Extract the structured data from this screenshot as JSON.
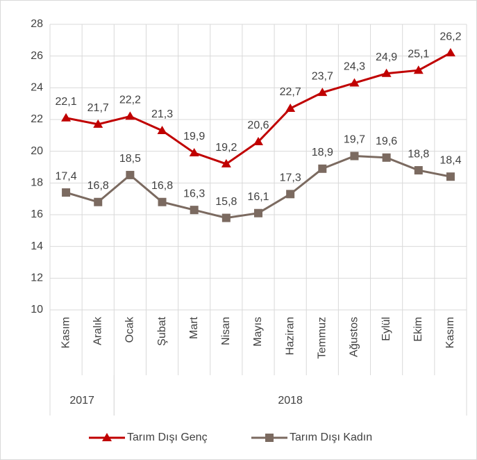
{
  "chart_data": {
    "type": "line",
    "categories": [
      "Kasım",
      "Aralık",
      "Ocak",
      "Şubat",
      "Mart",
      "Nisan",
      "Mayıs",
      "Haziran",
      "Temmuz",
      "Ağustos",
      "Eylül",
      "Ekim",
      "Kasım"
    ],
    "groups": [
      {
        "label": "2017",
        "span": 2
      },
      {
        "label": "2018",
        "span": 11
      }
    ],
    "series": [
      {
        "name": "Tarım Dışı Genç",
        "color": "#c00000",
        "marker": "triangle",
        "values": [
          22.1,
          21.7,
          22.2,
          21.3,
          19.9,
          19.2,
          20.6,
          22.7,
          23.7,
          24.3,
          24.9,
          25.1,
          26.2
        ],
        "value_labels": [
          "22,1",
          "21,7",
          "22,2",
          "21,3",
          "19,9",
          "19,2",
          "20,6",
          "22,7",
          "23,7",
          "24,3",
          "24,9",
          "25,1",
          "26,2"
        ]
      },
      {
        "name": "Tarım Dışı Kadın",
        "color": "#7b6a60",
        "marker": "square",
        "values": [
          17.4,
          16.8,
          18.5,
          16.8,
          16.3,
          15.8,
          16.1,
          17.3,
          18.9,
          19.7,
          19.6,
          18.8,
          18.4
        ],
        "value_labels": [
          "17,4",
          "16,8",
          "18,5",
          "16,8",
          "16,3",
          "15,8",
          "16,1",
          "17,3",
          "18,9",
          "19,7",
          "19,6",
          "18,8",
          "18,4"
        ]
      }
    ],
    "ylim": [
      10,
      28
    ],
    "yticks": [
      10,
      12,
      14,
      16,
      18,
      20,
      22,
      24,
      26,
      28
    ],
    "grid": true,
    "legend": "bottom"
  }
}
